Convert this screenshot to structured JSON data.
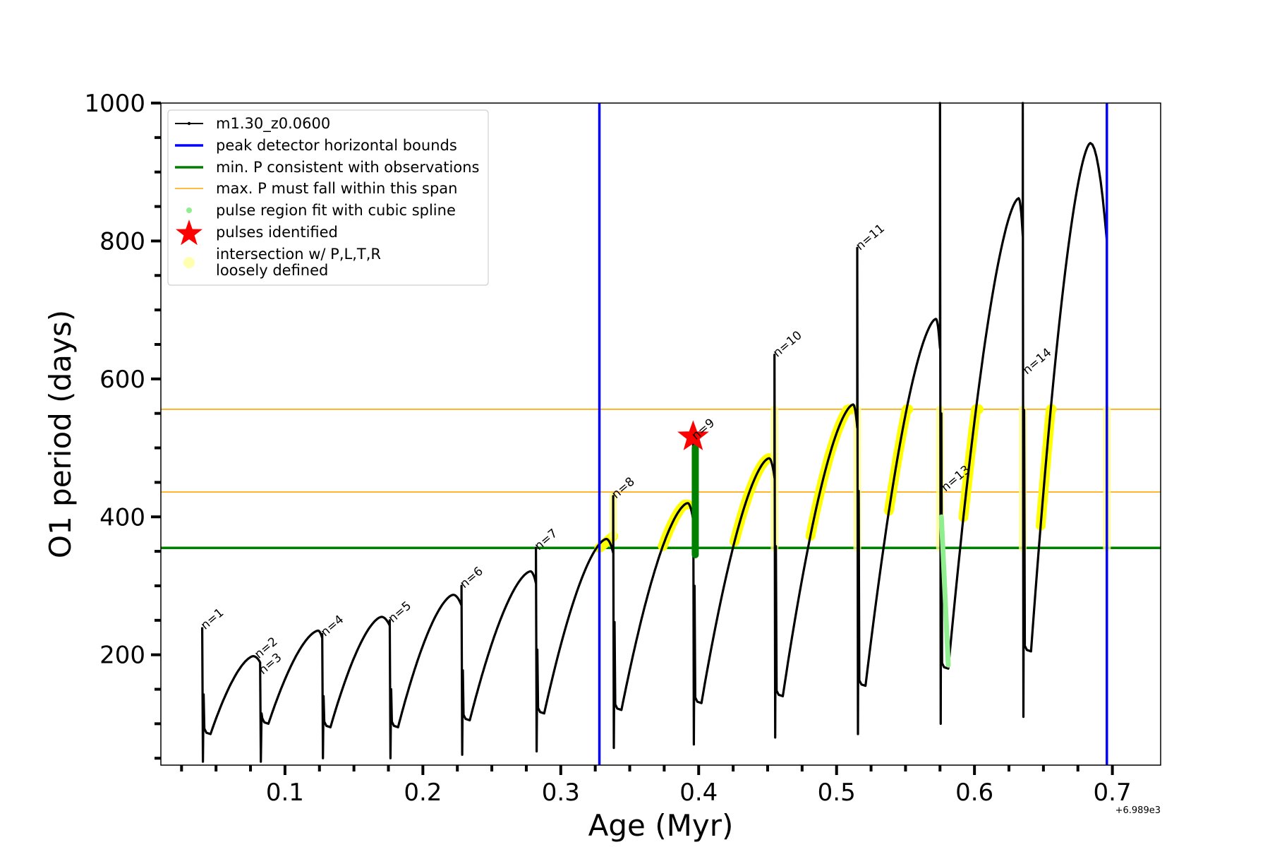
{
  "chart_data": {
    "type": "line",
    "xlabel": "Age (Myr)",
    "ylabel": "O1 period (days)",
    "x_offset_label": "+6.989e3",
    "xlim": [
      0.01,
      0.735
    ],
    "ylim": [
      40,
      1000
    ],
    "xticks": [
      {
        "value": 0.1,
        "label": "0.1"
      },
      {
        "value": 0.2,
        "label": "0.2"
      },
      {
        "value": 0.3,
        "label": "0.3"
      },
      {
        "value": 0.4,
        "label": "0.4"
      },
      {
        "value": 0.5,
        "label": "0.5"
      },
      {
        "value": 0.6,
        "label": "0.6"
      },
      {
        "value": 0.7,
        "label": "0.7"
      }
    ],
    "yticks": [
      {
        "value": 200,
        "label": "200"
      },
      {
        "value": 400,
        "label": "400"
      },
      {
        "value": 600,
        "label": "600"
      },
      {
        "value": 800,
        "label": "800"
      },
      {
        "value": 1000,
        "label": "1000"
      }
    ],
    "model_series": {
      "name": "m1.30_z0.0600",
      "color": "#000000",
      "cycles": [
        {
          "start": 0.04,
          "spikeTop": 240,
          "spikeBottom": 45,
          "trough": 85,
          "peakX": 0.077,
          "peak": 198
        },
        {
          "start": 0.082,
          "spikeTop": 185,
          "spikeBottom": 45,
          "trough": 100,
          "peakX": 0.124,
          "peak": 235
        },
        {
          "start": 0.127,
          "spikeTop": 230,
          "spikeBottom": 50,
          "trough": 95,
          "peakX": 0.17,
          "peak": 255
        },
        {
          "start": 0.176,
          "spikeTop": 250,
          "spikeBottom": 50,
          "trough": 95,
          "peakX": 0.222,
          "peak": 287
        },
        {
          "start": 0.228,
          "spikeTop": 300,
          "spikeBottom": 55,
          "trough": 105,
          "peakX": 0.278,
          "peak": 321
        },
        {
          "start": 0.282,
          "spikeTop": 355,
          "spikeBottom": 60,
          "trough": 115,
          "peakX": 0.333,
          "peak": 368
        },
        {
          "start": 0.338,
          "spikeTop": 430,
          "spikeBottom": 65,
          "trough": 120,
          "peakX": 0.392,
          "peak": 420
        },
        {
          "start": 0.396,
          "spikeTop": 530,
          "spikeBottom": 70,
          "trough": 130,
          "peakX": 0.451,
          "peak": 485
        },
        {
          "start": 0.455,
          "spikeTop": 635,
          "spikeBottom": 80,
          "trough": 140,
          "peakX": 0.512,
          "peak": 563
        },
        {
          "start": 0.515,
          "spikeTop": 790,
          "spikeBottom": 85,
          "trough": 155,
          "peakX": 0.572,
          "peak": 687
        },
        {
          "start": 0.575,
          "spikeTop": 1000,
          "spikeBottom": 100,
          "trough": 180,
          "peakX": 0.632,
          "peak": 862
        },
        {
          "start": 0.635,
          "spikeTop": 1000,
          "spikeBottom": 110,
          "trough": 205,
          "peakX": 0.684,
          "peak": 942
        }
      ],
      "end": {
        "x": 0.696,
        "y": 800
      }
    },
    "peak_detector_bounds": {
      "x": [
        0.328,
        0.696
      ],
      "color": "#0000ff"
    },
    "min_period_line": {
      "y": 355,
      "color": "#008000"
    },
    "max_period_span": {
      "y": [
        436,
        556
      ],
      "color": "#ffa500"
    },
    "pulse_spline_region": {
      "x_start": 0.576,
      "y_start": 400,
      "x_end": 0.581,
      "y_end": 185,
      "color": "#90ee90"
    },
    "pulse_identified": {
      "x": 0.396,
      "y": 516,
      "color": "#ff0000"
    },
    "pulse_green_segment": {
      "x": 0.396,
      "y_low": 345,
      "y_high": 500,
      "color": "#008000"
    },
    "intersection_segments": [
      {
        "x_start": 0.328,
        "x_end": 0.338,
        "y_low": 355,
        "y_high": 372,
        "kind": "rise"
      },
      {
        "x_start": 0.374,
        "x_end": 0.392,
        "y_low": 355,
        "y_high": 418,
        "kind": "rise"
      },
      {
        "x_start": 0.426,
        "x_end": 0.451,
        "y_low": 355,
        "y_high": 485,
        "kind": "rise"
      },
      {
        "x_start": 0.481,
        "x_end": 0.512,
        "y_low": 355,
        "y_high": 556,
        "kind": "rise"
      },
      {
        "x_start": 0.538,
        "x_end": 0.552,
        "y_low": 355,
        "y_high": 556,
        "kind": "rise"
      },
      {
        "x_start": 0.592,
        "x_end": 0.603,
        "y_low": 355,
        "y_high": 556,
        "kind": "rise"
      },
      {
        "x_start": 0.648,
        "x_end": 0.656,
        "y_low": 355,
        "y_high": 556,
        "kind": "rise"
      },
      {
        "x": 0.455,
        "y_low": 355,
        "y_high": 556,
        "kind": "vertical"
      },
      {
        "x": 0.515,
        "y_low": 355,
        "y_high": 556,
        "kind": "vertical"
      },
      {
        "x": 0.575,
        "y_low": 355,
        "y_high": 556,
        "kind": "vertical"
      },
      {
        "x": 0.635,
        "y_low": 355,
        "y_high": 556,
        "kind": "vertical"
      },
      {
        "x": 0.696,
        "y_low": 355,
        "y_high": 556,
        "kind": "vertical"
      },
      {
        "x": 0.338,
        "y_low": 372,
        "y_high": 430,
        "kind": "vertical"
      }
    ],
    "pulse_labels": [
      {
        "text": "n=1",
        "x": 0.041,
        "y": 240
      },
      {
        "text": "n=2",
        "x": 0.08,
        "y": 198
      },
      {
        "text": "n=3",
        "x": 0.083,
        "y": 175
      },
      {
        "text": "n=4",
        "x": 0.128,
        "y": 230
      },
      {
        "text": "n=5",
        "x": 0.177,
        "y": 250
      },
      {
        "text": "n=6",
        "x": 0.229,
        "y": 300
      },
      {
        "text": "n=7",
        "x": 0.283,
        "y": 355
      },
      {
        "text": "n=8",
        "x": 0.339,
        "y": 430
      },
      {
        "text": "n=9",
        "x": 0.397,
        "y": 515
      },
      {
        "text": "n=10",
        "x": 0.456,
        "y": 635
      },
      {
        "text": "n=11",
        "x": 0.516,
        "y": 790
      },
      {
        "text": "n=13",
        "x": 0.578,
        "y": 440
      },
      {
        "text": "n=14",
        "x": 0.637,
        "y": 610
      }
    ],
    "legend": [
      {
        "label": "m1.30_z0.0600",
        "marker": "line-dot",
        "color": "#000000"
      },
      {
        "label": "peak detector horizontal bounds",
        "marker": "line",
        "color": "#0000ff"
      },
      {
        "label": "min. P consistent with observations",
        "marker": "line",
        "color": "#008000"
      },
      {
        "label": "max. P must fall within this span",
        "marker": "thin-line",
        "color": "#ffa500"
      },
      {
        "label": "pulse region fit with cubic spline",
        "marker": "dot",
        "color": "#90ee90"
      },
      {
        "label": "pulses identified",
        "marker": "star",
        "color": "#ff0000"
      },
      {
        "label": "intersection w/ P,L,T,R",
        "label2": "loosely defined",
        "marker": "circle",
        "color": "#ffffb0"
      }
    ],
    "legend_position": "upper-left"
  }
}
